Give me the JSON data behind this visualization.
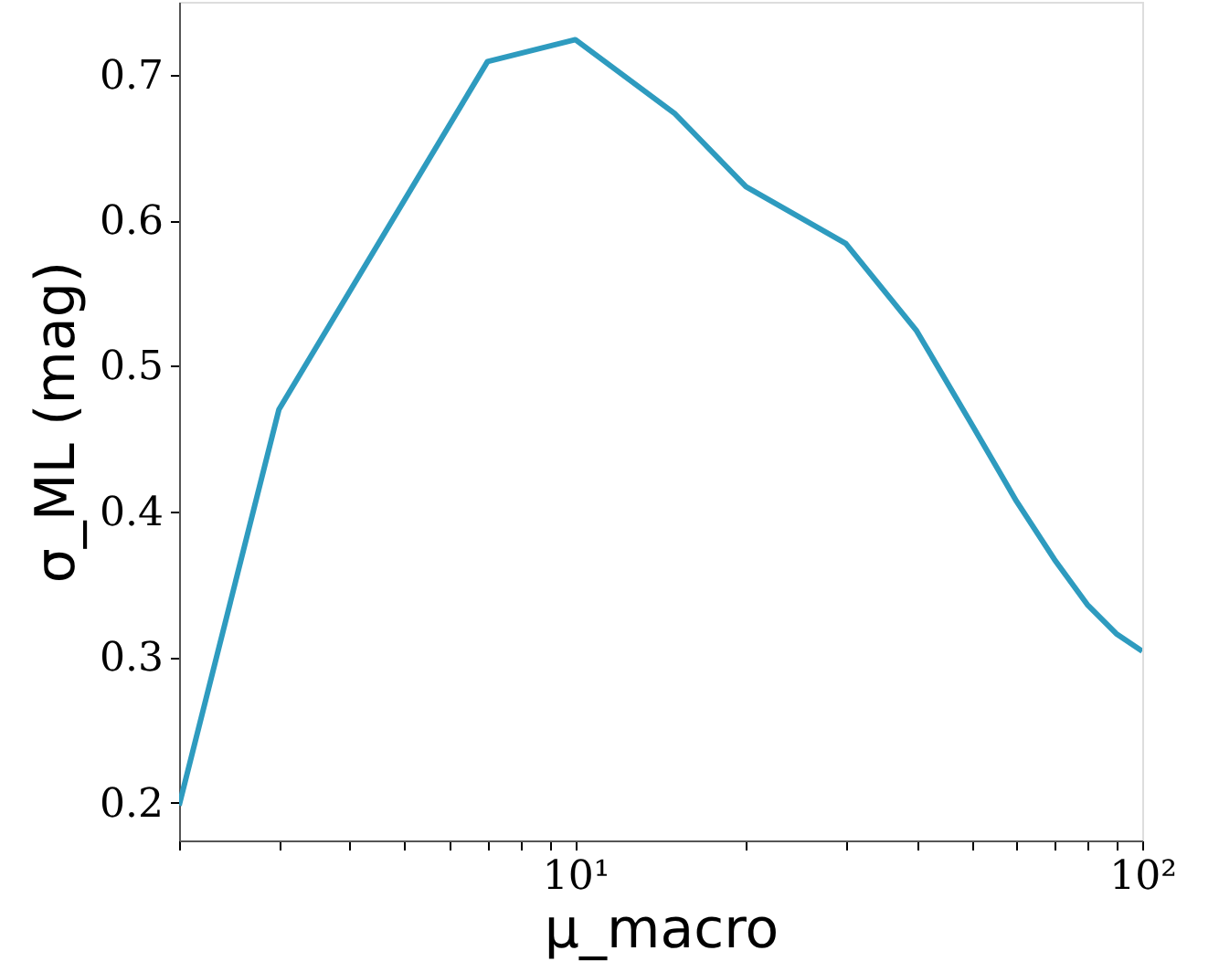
{
  "chart_data": {
    "type": "line",
    "xlabel": "μ_macro",
    "ylabel": "σ_ML (mag)",
    "log": "x",
    "grid": false,
    "marker": "none",
    "line_style": "solid",
    "xlim": [
      2,
      100
    ],
    "ylim": [
      0.174,
      0.75
    ],
    "xticks": [
      {
        "value": 2,
        "label": null
      },
      {
        "value": 3,
        "label": null
      },
      {
        "value": 4,
        "label": null
      },
      {
        "value": 5,
        "label": null
      },
      {
        "value": 6,
        "label": null
      },
      {
        "value": 7,
        "label": null
      },
      {
        "value": 8,
        "label": null
      },
      {
        "value": 9,
        "label": null
      },
      {
        "value": 10,
        "label": "10¹"
      },
      {
        "value": 20,
        "label": null
      },
      {
        "value": 30,
        "label": null
      },
      {
        "value": 40,
        "label": null
      },
      {
        "value": 50,
        "label": null
      },
      {
        "value": 60,
        "label": null
      },
      {
        "value": 70,
        "label": null
      },
      {
        "value": 80,
        "label": null
      },
      {
        "value": 90,
        "label": null
      },
      {
        "value": 100,
        "label": "10²"
      }
    ],
    "yticks": [
      {
        "value": 0.2,
        "label": "0.2"
      },
      {
        "value": 0.3,
        "label": "0.3"
      },
      {
        "value": 0.4,
        "label": "0.4"
      },
      {
        "value": 0.5,
        "label": "0.5"
      },
      {
        "value": 0.6,
        "label": "0.6"
      },
      {
        "value": 0.7,
        "label": "0.7"
      }
    ],
    "x": [
      2,
      3,
      7,
      10,
      15,
      20,
      30,
      40,
      50,
      60,
      70,
      80,
      90,
      100
    ],
    "series": [
      {
        "color": "#2e9bbf",
        "values": [
          0.198,
          0.47,
          0.709,
          0.724,
          0.673,
          0.623,
          0.584,
          0.524,
          0.46,
          0.407,
          0.367,
          0.336,
          0.316,
          0.304
        ]
      }
    ]
  }
}
